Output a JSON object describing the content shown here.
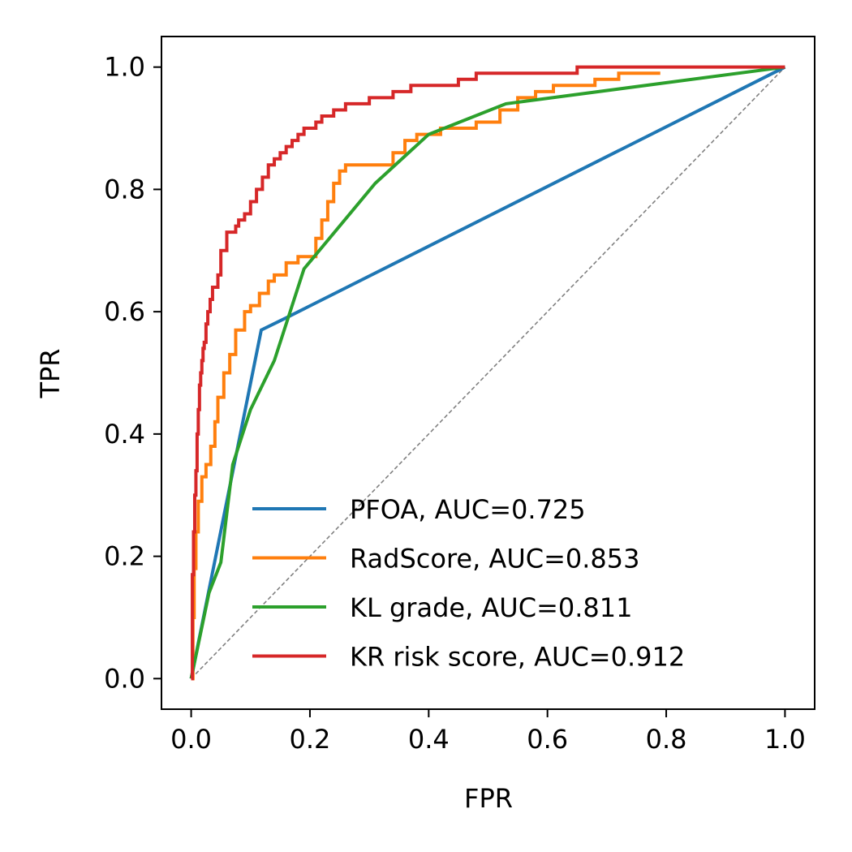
{
  "chart_data": {
    "type": "line",
    "title": "",
    "xlabel": "FPR",
    "ylabel": "TPR",
    "xlim": [
      -0.05,
      1.05
    ],
    "ylim": [
      -0.05,
      1.05
    ],
    "xticks": [
      0.0,
      0.2,
      0.4,
      0.6,
      0.8,
      1.0
    ],
    "yticks": [
      0.0,
      0.2,
      0.4,
      0.6,
      0.8,
      1.0
    ],
    "xtick_labels": [
      "0.0",
      "0.2",
      "0.4",
      "0.6",
      "0.8",
      "1.0"
    ],
    "ytick_labels": [
      "0.0",
      "0.2",
      "0.4",
      "0.6",
      "0.8",
      "1.0"
    ],
    "grid": false,
    "legend_position": "lower-right",
    "reference_line": {
      "x": [
        0,
        1
      ],
      "y": [
        0,
        1
      ],
      "color": "#808080",
      "style": "dashed"
    },
    "series": [
      {
        "name": "PFOA, AUC=0.725",
        "color": "#1f77b4",
        "x": [
          0.0,
          0.118,
          0.16,
          1.0
        ],
        "y": [
          0.0,
          0.57,
          0.59,
          1.0
        ]
      },
      {
        "name": "RadScore, AUC=0.853",
        "color": "#ff7f0e",
        "x": [
          0.0,
          0.003,
          0.003,
          0.005,
          0.005,
          0.008,
          0.008,
          0.012,
          0.012,
          0.018,
          0.018,
          0.025,
          0.025,
          0.033,
          0.033,
          0.04,
          0.04,
          0.045,
          0.045,
          0.055,
          0.055,
          0.065,
          0.065,
          0.075,
          0.075,
          0.09,
          0.09,
          0.1,
          0.1,
          0.115,
          0.115,
          0.13,
          0.13,
          0.14,
          0.14,
          0.16,
          0.16,
          0.18,
          0.18,
          0.21,
          0.21,
          0.22,
          0.22,
          0.23,
          0.23,
          0.24,
          0.24,
          0.25,
          0.25,
          0.26,
          0.26,
          0.28,
          0.28,
          0.34,
          0.34,
          0.36,
          0.36,
          0.38,
          0.38,
          0.42,
          0.42,
          0.48,
          0.48,
          0.52,
          0.52,
          0.55,
          0.55,
          0.58,
          0.58,
          0.61,
          0.61,
          0.68,
          0.68,
          0.72,
          0.72,
          0.79
        ],
        "y": [
          0.0,
          0.0,
          0.1,
          0.1,
          0.18,
          0.18,
          0.24,
          0.24,
          0.29,
          0.29,
          0.33,
          0.33,
          0.35,
          0.35,
          0.38,
          0.38,
          0.42,
          0.42,
          0.46,
          0.46,
          0.5,
          0.5,
          0.53,
          0.53,
          0.57,
          0.57,
          0.6,
          0.6,
          0.61,
          0.61,
          0.63,
          0.63,
          0.65,
          0.65,
          0.66,
          0.66,
          0.68,
          0.68,
          0.69,
          0.69,
          0.72,
          0.72,
          0.75,
          0.75,
          0.78,
          0.78,
          0.81,
          0.81,
          0.83,
          0.83,
          0.84,
          0.84,
          0.84,
          0.84,
          0.86,
          0.86,
          0.88,
          0.88,
          0.89,
          0.89,
          0.9,
          0.9,
          0.91,
          0.91,
          0.93,
          0.93,
          0.95,
          0.95,
          0.96,
          0.96,
          0.97,
          0.97,
          0.98,
          0.98,
          0.99,
          0.99
        ]
      },
      {
        "name": "KL grade, AUC=0.811",
        "color": "#2ca02c",
        "x": [
          0.0,
          0.03,
          0.05,
          0.07,
          0.1,
          0.14,
          0.19,
          0.31,
          0.4,
          0.53,
          1.0
        ],
        "y": [
          0.0,
          0.14,
          0.19,
          0.35,
          0.44,
          0.52,
          0.67,
          0.81,
          0.89,
          0.94,
          1.0
        ]
      },
      {
        "name": "KR risk score, AUC=0.912",
        "color": "#d62728",
        "x": [
          0.0,
          0.002,
          0.002,
          0.004,
          0.004,
          0.006,
          0.006,
          0.008,
          0.008,
          0.01,
          0.01,
          0.012,
          0.012,
          0.014,
          0.014,
          0.016,
          0.016,
          0.018,
          0.018,
          0.02,
          0.02,
          0.022,
          0.022,
          0.025,
          0.025,
          0.028,
          0.028,
          0.032,
          0.032,
          0.036,
          0.036,
          0.04,
          0.04,
          0.045,
          0.045,
          0.05,
          0.05,
          0.06,
          0.06,
          0.07,
          0.07,
          0.075,
          0.075,
          0.08,
          0.08,
          0.09,
          0.09,
          0.1,
          0.1,
          0.11,
          0.11,
          0.12,
          0.12,
          0.13,
          0.13,
          0.14,
          0.14,
          0.15,
          0.15,
          0.16,
          0.16,
          0.17,
          0.17,
          0.18,
          0.18,
          0.19,
          0.19,
          0.2,
          0.2,
          0.21,
          0.21,
          0.22,
          0.22,
          0.24,
          0.24,
          0.26,
          0.26,
          0.28,
          0.28,
          0.3,
          0.3,
          0.34,
          0.34,
          0.37,
          0.37,
          0.45,
          0.45,
          0.48,
          0.48,
          0.61,
          0.61,
          0.65,
          0.65,
          0.68,
          0.68,
          0.72,
          0.72,
          1.0
        ],
        "y": [
          0.0,
          0.0,
          0.17,
          0.17,
          0.24,
          0.24,
          0.3,
          0.3,
          0.34,
          0.34,
          0.4,
          0.4,
          0.44,
          0.44,
          0.48,
          0.48,
          0.5,
          0.5,
          0.52,
          0.52,
          0.54,
          0.54,
          0.55,
          0.55,
          0.58,
          0.58,
          0.6,
          0.6,
          0.62,
          0.62,
          0.64,
          0.64,
          0.64,
          0.64,
          0.66,
          0.66,
          0.7,
          0.7,
          0.73,
          0.73,
          0.73,
          0.73,
          0.74,
          0.74,
          0.75,
          0.75,
          0.76,
          0.76,
          0.78,
          0.78,
          0.8,
          0.8,
          0.82,
          0.82,
          0.84,
          0.84,
          0.85,
          0.85,
          0.86,
          0.86,
          0.87,
          0.87,
          0.88,
          0.88,
          0.89,
          0.89,
          0.9,
          0.9,
          0.9,
          0.9,
          0.91,
          0.91,
          0.92,
          0.92,
          0.93,
          0.93,
          0.94,
          0.94,
          0.94,
          0.94,
          0.95,
          0.95,
          0.96,
          0.96,
          0.97,
          0.97,
          0.98,
          0.98,
          0.99,
          0.99,
          0.99,
          0.99,
          1.0,
          1.0,
          1.0,
          1.0,
          1.0,
          1.0
        ]
      }
    ]
  }
}
